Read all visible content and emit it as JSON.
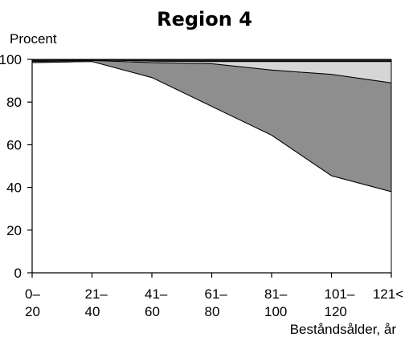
{
  "chart_data": {
    "type": "area",
    "title": "Region 4",
    "ylabel": "Procent",
    "xlabel": "Beståndsålder, år",
    "categories": [
      [
        "0–",
        "20"
      ],
      [
        "21–",
        "40"
      ],
      [
        "41–",
        "60"
      ],
      [
        "61–",
        "80"
      ],
      [
        "81–",
        "100"
      ],
      [
        "101–",
        "120"
      ],
      [
        "121<",
        ""
      ]
    ],
    "ylim": [
      0,
      100
    ],
    "yticks": [
      0,
      20,
      40,
      60,
      80,
      100
    ],
    "grid": false,
    "stacked": true,
    "series": [
      {
        "values": [
          98.5,
          99,
          91.5,
          78,
          64.5,
          45.5,
          38
        ],
        "color": "#ffffff"
      },
      {
        "values": [
          0.5,
          0.5,
          7,
          20,
          30.5,
          47.5,
          51
        ],
        "color": "#8e8e8e"
      },
      {
        "values": [
          0.5,
          0.3,
          0.7,
          1,
          4,
          6,
          10
        ],
        "color": "#d6d6d6"
      },
      {
        "values": [
          0.5,
          0.2,
          0.8,
          1,
          1,
          1,
          1
        ],
        "color": "#1a1a1a"
      }
    ]
  }
}
